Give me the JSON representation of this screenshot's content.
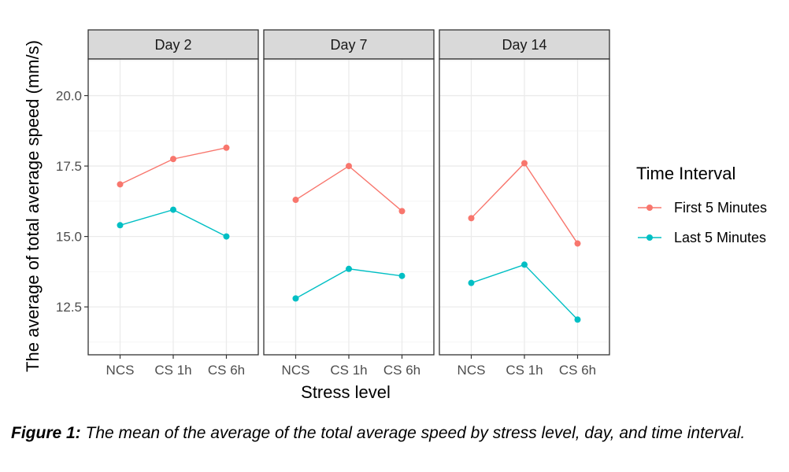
{
  "chart_data": {
    "type": "line",
    "ylabel": "The average of total average speed (mm/s)",
    "xlabel": "Stress level",
    "categories": [
      "NCS",
      "CS 1h",
      "CS 6h"
    ],
    "yticks": [
      "20.0",
      "17.5",
      "15.0",
      "12.5"
    ],
    "ylim": [
      10.8,
      21.3
    ],
    "grid": true,
    "legend_title": "Time Interval",
    "legend_position": "right",
    "series_names": [
      "First 5 Minutes",
      "Last 5 Minutes"
    ],
    "series_colors": [
      "#F8766D",
      "#00BFC4"
    ],
    "panels": [
      {
        "title": "Day 2",
        "series": [
          {
            "name": "First 5 Minutes",
            "values": [
              16.85,
              17.75,
              18.15
            ]
          },
          {
            "name": "Last 5 Minutes",
            "values": [
              15.4,
              15.95,
              15.0
            ]
          }
        ]
      },
      {
        "title": "Day 7",
        "series": [
          {
            "name": "First 5 Minutes",
            "values": [
              16.3,
              17.5,
              15.9
            ]
          },
          {
            "name": "Last 5 Minutes",
            "values": [
              12.8,
              13.85,
              13.6
            ]
          }
        ]
      },
      {
        "title": "Day 14",
        "series": [
          {
            "name": "First 5 Minutes",
            "values": [
              15.65,
              17.6,
              14.75
            ]
          },
          {
            "name": "Last 5 Minutes",
            "values": [
              13.35,
              14.0,
              12.05
            ]
          }
        ]
      }
    ]
  },
  "caption": {
    "label": "Figure 1:",
    "text": " The mean of the average of the total average speed by stress level, day, and time interval."
  }
}
